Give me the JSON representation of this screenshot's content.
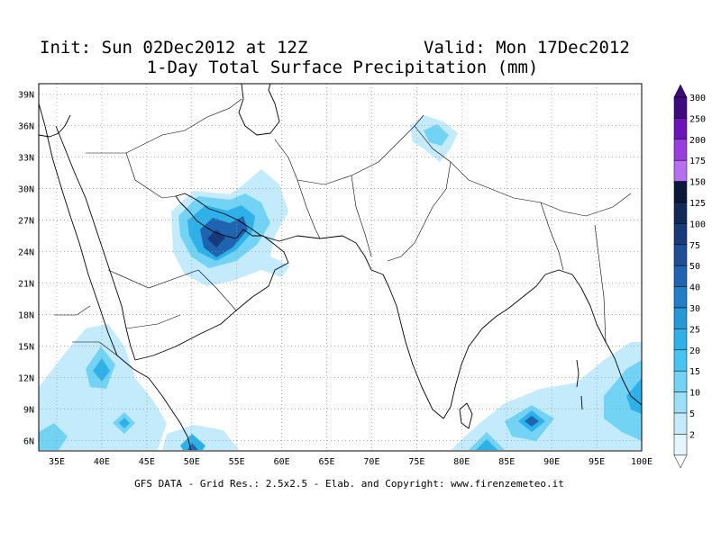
{
  "header": {
    "init": "Init: Sun 02Dec2012 at 12Z",
    "valid": "Valid: Mon 17Dec2012",
    "subtitle": "1-Day Total Surface Precipitation (mm)"
  },
  "axes": {
    "lon_labels": [
      "35E",
      "40E",
      "45E",
      "50E",
      "55E",
      "60E",
      "65E",
      "70E",
      "75E",
      "80E",
      "85E",
      "90E",
      "95E",
      "100E"
    ],
    "lat_labels": [
      "39N",
      "36N",
      "33N",
      "30N",
      "27N",
      "24N",
      "21N",
      "18N",
      "15N",
      "12N",
      "9N",
      "6N"
    ]
  },
  "colorbar": {
    "labels": [
      "300",
      "250",
      "200",
      "175",
      "150",
      "125",
      "100",
      "75",
      "50",
      "40",
      "30",
      "25",
      "20",
      "15",
      "10",
      "5",
      "2"
    ],
    "colors": [
      "#3d0a80",
      "#6b14b8",
      "#9a3de0",
      "#b56ff0",
      "#0b1a3a",
      "#122a5a",
      "#18397a",
      "#1d4e96",
      "#1f64b0",
      "#1f7fc8",
      "#2598d8",
      "#2eb1e8",
      "#47c5f2",
      "#73d3f5",
      "#9bdff8",
      "#c3ebfb",
      "#e4f6fd"
    ]
  },
  "precip_colors": {
    "light": "#c3ebfb",
    "mid": "#73d3f5",
    "blue": "#2eb1e8",
    "dark": "#1f64b0",
    "darker": "#18397a"
  },
  "footer": "GFS DATA - Grid Res.: 2.5x2.5 - Elab. and Copyright: www.firenzemeteo.it"
}
